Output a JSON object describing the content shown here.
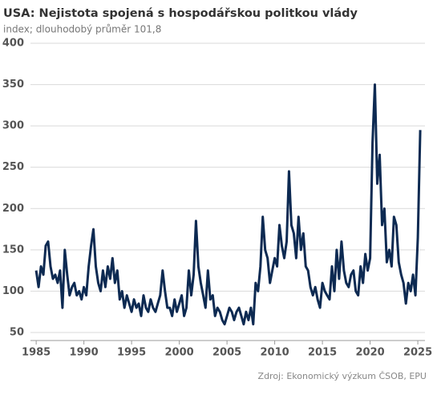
{
  "chart_data": {
    "type": "line",
    "title": "USA: Nejistota spojená s hospodářskou politkou vlády",
    "subtitle": "index; dlouhodobý průměr 101,8",
    "source": "Zdroj: Ekonomický výzkum ČSOB, EPU",
    "x": [
      1985,
      1985.25,
      1985.5,
      1985.75,
      1986,
      1986.25,
      1986.5,
      1986.75,
      1987,
      1987.25,
      1987.5,
      1987.75,
      1988,
      1988.25,
      1988.5,
      1988.75,
      1989,
      1989.25,
      1989.5,
      1989.75,
      1990,
      1990.25,
      1990.5,
      1990.75,
      1991,
      1991.25,
      1991.5,
      1991.75,
      1992,
      1992.25,
      1992.5,
      1992.75,
      1993,
      1993.25,
      1993.5,
      1993.75,
      1994,
      1994.25,
      1994.5,
      1994.75,
      1995,
      1995.25,
      1995.5,
      1995.75,
      1996,
      1996.25,
      1996.5,
      1996.75,
      1997,
      1997.25,
      1997.5,
      1997.75,
      1998,
      1998.25,
      1998.5,
      1998.75,
      1999,
      1999.25,
      1999.5,
      1999.75,
      2000,
      2000.25,
      2000.5,
      2000.75,
      2001,
      2001.25,
      2001.5,
      2001.75,
      2002,
      2002.25,
      2002.5,
      2002.75,
      2003,
      2003.25,
      2003.5,
      2003.75,
      2004,
      2004.25,
      2004.5,
      2004.75,
      2005,
      2005.25,
      2005.5,
      2005.75,
      2006,
      2006.25,
      2006.5,
      2006.75,
      2007,
      2007.25,
      2007.5,
      2007.75,
      2008,
      2008.25,
      2008.5,
      2008.75,
      2009,
      2009.25,
      2009.5,
      2009.75,
      2010,
      2010.25,
      2010.5,
      2010.75,
      2011,
      2011.25,
      2011.5,
      2011.75,
      2012,
      2012.25,
      2012.5,
      2012.75,
      2013,
      2013.25,
      2013.5,
      2013.75,
      2014,
      2014.25,
      2014.5,
      2014.75,
      2015,
      2015.25,
      2015.5,
      2015.75,
      2016,
      2016.25,
      2016.5,
      2016.75,
      2017,
      2017.25,
      2017.5,
      2017.75,
      2018,
      2018.25,
      2018.5,
      2018.75,
      2019,
      2019.25,
      2019.5,
      2019.75,
      2020,
      2020.25,
      2020.5,
      2020.75,
      2021,
      2021.25,
      2021.5,
      2021.75,
      2022,
      2022.25,
      2022.5,
      2022.75,
      2023,
      2023.25,
      2023.5,
      2023.75,
      2024,
      2024.25,
      2024.5,
      2024.75,
      2025,
      2025.25
    ],
    "series": [
      {
        "name": "EPU",
        "color": "#0d2a52",
        "values": [
          125,
          105,
          130,
          120,
          155,
          160,
          130,
          115,
          120,
          110,
          125,
          80,
          150,
          120,
          95,
          105,
          110,
          95,
          100,
          90,
          105,
          95,
          130,
          155,
          175,
          130,
          110,
          100,
          125,
          105,
          130,
          115,
          140,
          110,
          125,
          90,
          100,
          80,
          95,
          85,
          75,
          90,
          80,
          85,
          70,
          95,
          80,
          75,
          90,
          80,
          75,
          85,
          95,
          125,
          100,
          80,
          80,
          70,
          90,
          75,
          85,
          95,
          70,
          80,
          125,
          95,
          120,
          185,
          130,
          110,
          95,
          80,
          125,
          90,
          95,
          70,
          80,
          75,
          65,
          60,
          70,
          80,
          75,
          65,
          75,
          80,
          70,
          60,
          75,
          65,
          80,
          60,
          110,
          100,
          130,
          190,
          150,
          140,
          110,
          125,
          140,
          130,
          180,
          155,
          140,
          160,
          245,
          180,
          170,
          140,
          190,
          150,
          170,
          130,
          125,
          105,
          95,
          105,
          90,
          80,
          110,
          100,
          95,
          90,
          130,
          100,
          150,
          115,
          160,
          125,
          110,
          105,
          120,
          125,
          100,
          95,
          130,
          110,
          145,
          125,
          140,
          280,
          350,
          230,
          265,
          180,
          200,
          135,
          150,
          130,
          190,
          180,
          135,
          120,
          110,
          85,
          110,
          100,
          120,
          95,
          165,
          295
        ]
      }
    ],
    "xlim": [
      1984.4,
      2025.75
    ],
    "ylim": [
      50,
      400
    ],
    "xticks": [
      1985,
      1990,
      1995,
      2000,
      2005,
      2010,
      2015,
      2020,
      2025
    ],
    "yticks": [
      50,
      100,
      150,
      200,
      250,
      300,
      350,
      400
    ],
    "grid": true
  }
}
